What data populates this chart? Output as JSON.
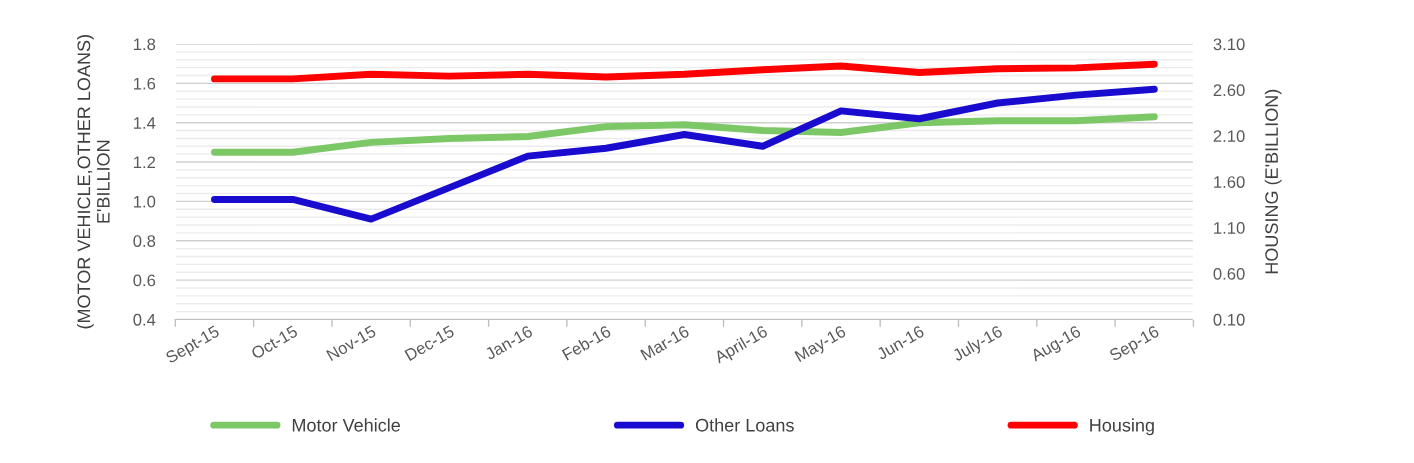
{
  "chart_data": {
    "type": "line",
    "categories": [
      "Sept-15",
      "Oct-15",
      "Nov-15",
      "Dec-15",
      "Jan-16",
      "Feb-16",
      "Mar-16",
      "April-16",
      "May-16",
      "Jun-16",
      "July-16",
      "Aug-16",
      "Sep-16"
    ],
    "series": [
      {
        "name": "Motor Vehicle",
        "color": "#7dc866",
        "values": [
          1.25,
          1.25,
          1.3,
          1.32,
          1.33,
          1.38,
          1.39,
          1.36,
          1.35,
          1.4,
          1.41,
          1.41,
          1.43
        ]
      },
      {
        "name": "Other Loans",
        "color": "#1a0ccf",
        "values": [
          1.01,
          1.01,
          0.91,
          1.07,
          1.23,
          1.27,
          1.34,
          1.28,
          1.46,
          1.42,
          1.5,
          1.54,
          1.57
        ]
      },
      {
        "name": "Housing",
        "color": "#ff0000",
        "axis": "y2",
        "values": [
          2.72,
          2.72,
          2.77,
          2.75,
          2.77,
          2.74,
          2.77,
          2.82,
          2.86,
          2.79,
          2.83,
          2.84,
          2.88
        ]
      }
    ],
    "ylabel": "(MOTOR VEHICLE,OTHER LOANS)\nE'BILLION",
    "y2label": "HOUSING (E'BILLION)",
    "ylim": [
      0.4,
      1.8
    ],
    "yticks": [
      {
        "value": 0.4,
        "label": "0.4"
      },
      {
        "value": 0.6,
        "label": "0.6"
      },
      {
        "value": 0.8,
        "label": "0.8"
      },
      {
        "value": 1.0,
        "label": "1.0"
      },
      {
        "value": 1.2,
        "label": "1.2"
      },
      {
        "value": 1.4,
        "label": "1.4"
      },
      {
        "value": 1.6,
        "label": "1.6"
      },
      {
        "value": 1.8,
        "label": "1.8"
      }
    ],
    "y2lim": [
      0.1,
      3.1
    ],
    "y2ticks": [
      {
        "value": 0.1,
        "label": "0.10"
      },
      {
        "value": 0.6,
        "label": "0.60"
      },
      {
        "value": 1.1,
        "label": "1.10"
      },
      {
        "value": 1.6,
        "label": "1.60"
      },
      {
        "value": 2.1,
        "label": "2.10"
      },
      {
        "value": 2.6,
        "label": "2.60"
      },
      {
        "value": 3.1,
        "label": "3.10"
      }
    ],
    "grid": "y",
    "legend": "bottom",
    "line_style": "solid"
  }
}
